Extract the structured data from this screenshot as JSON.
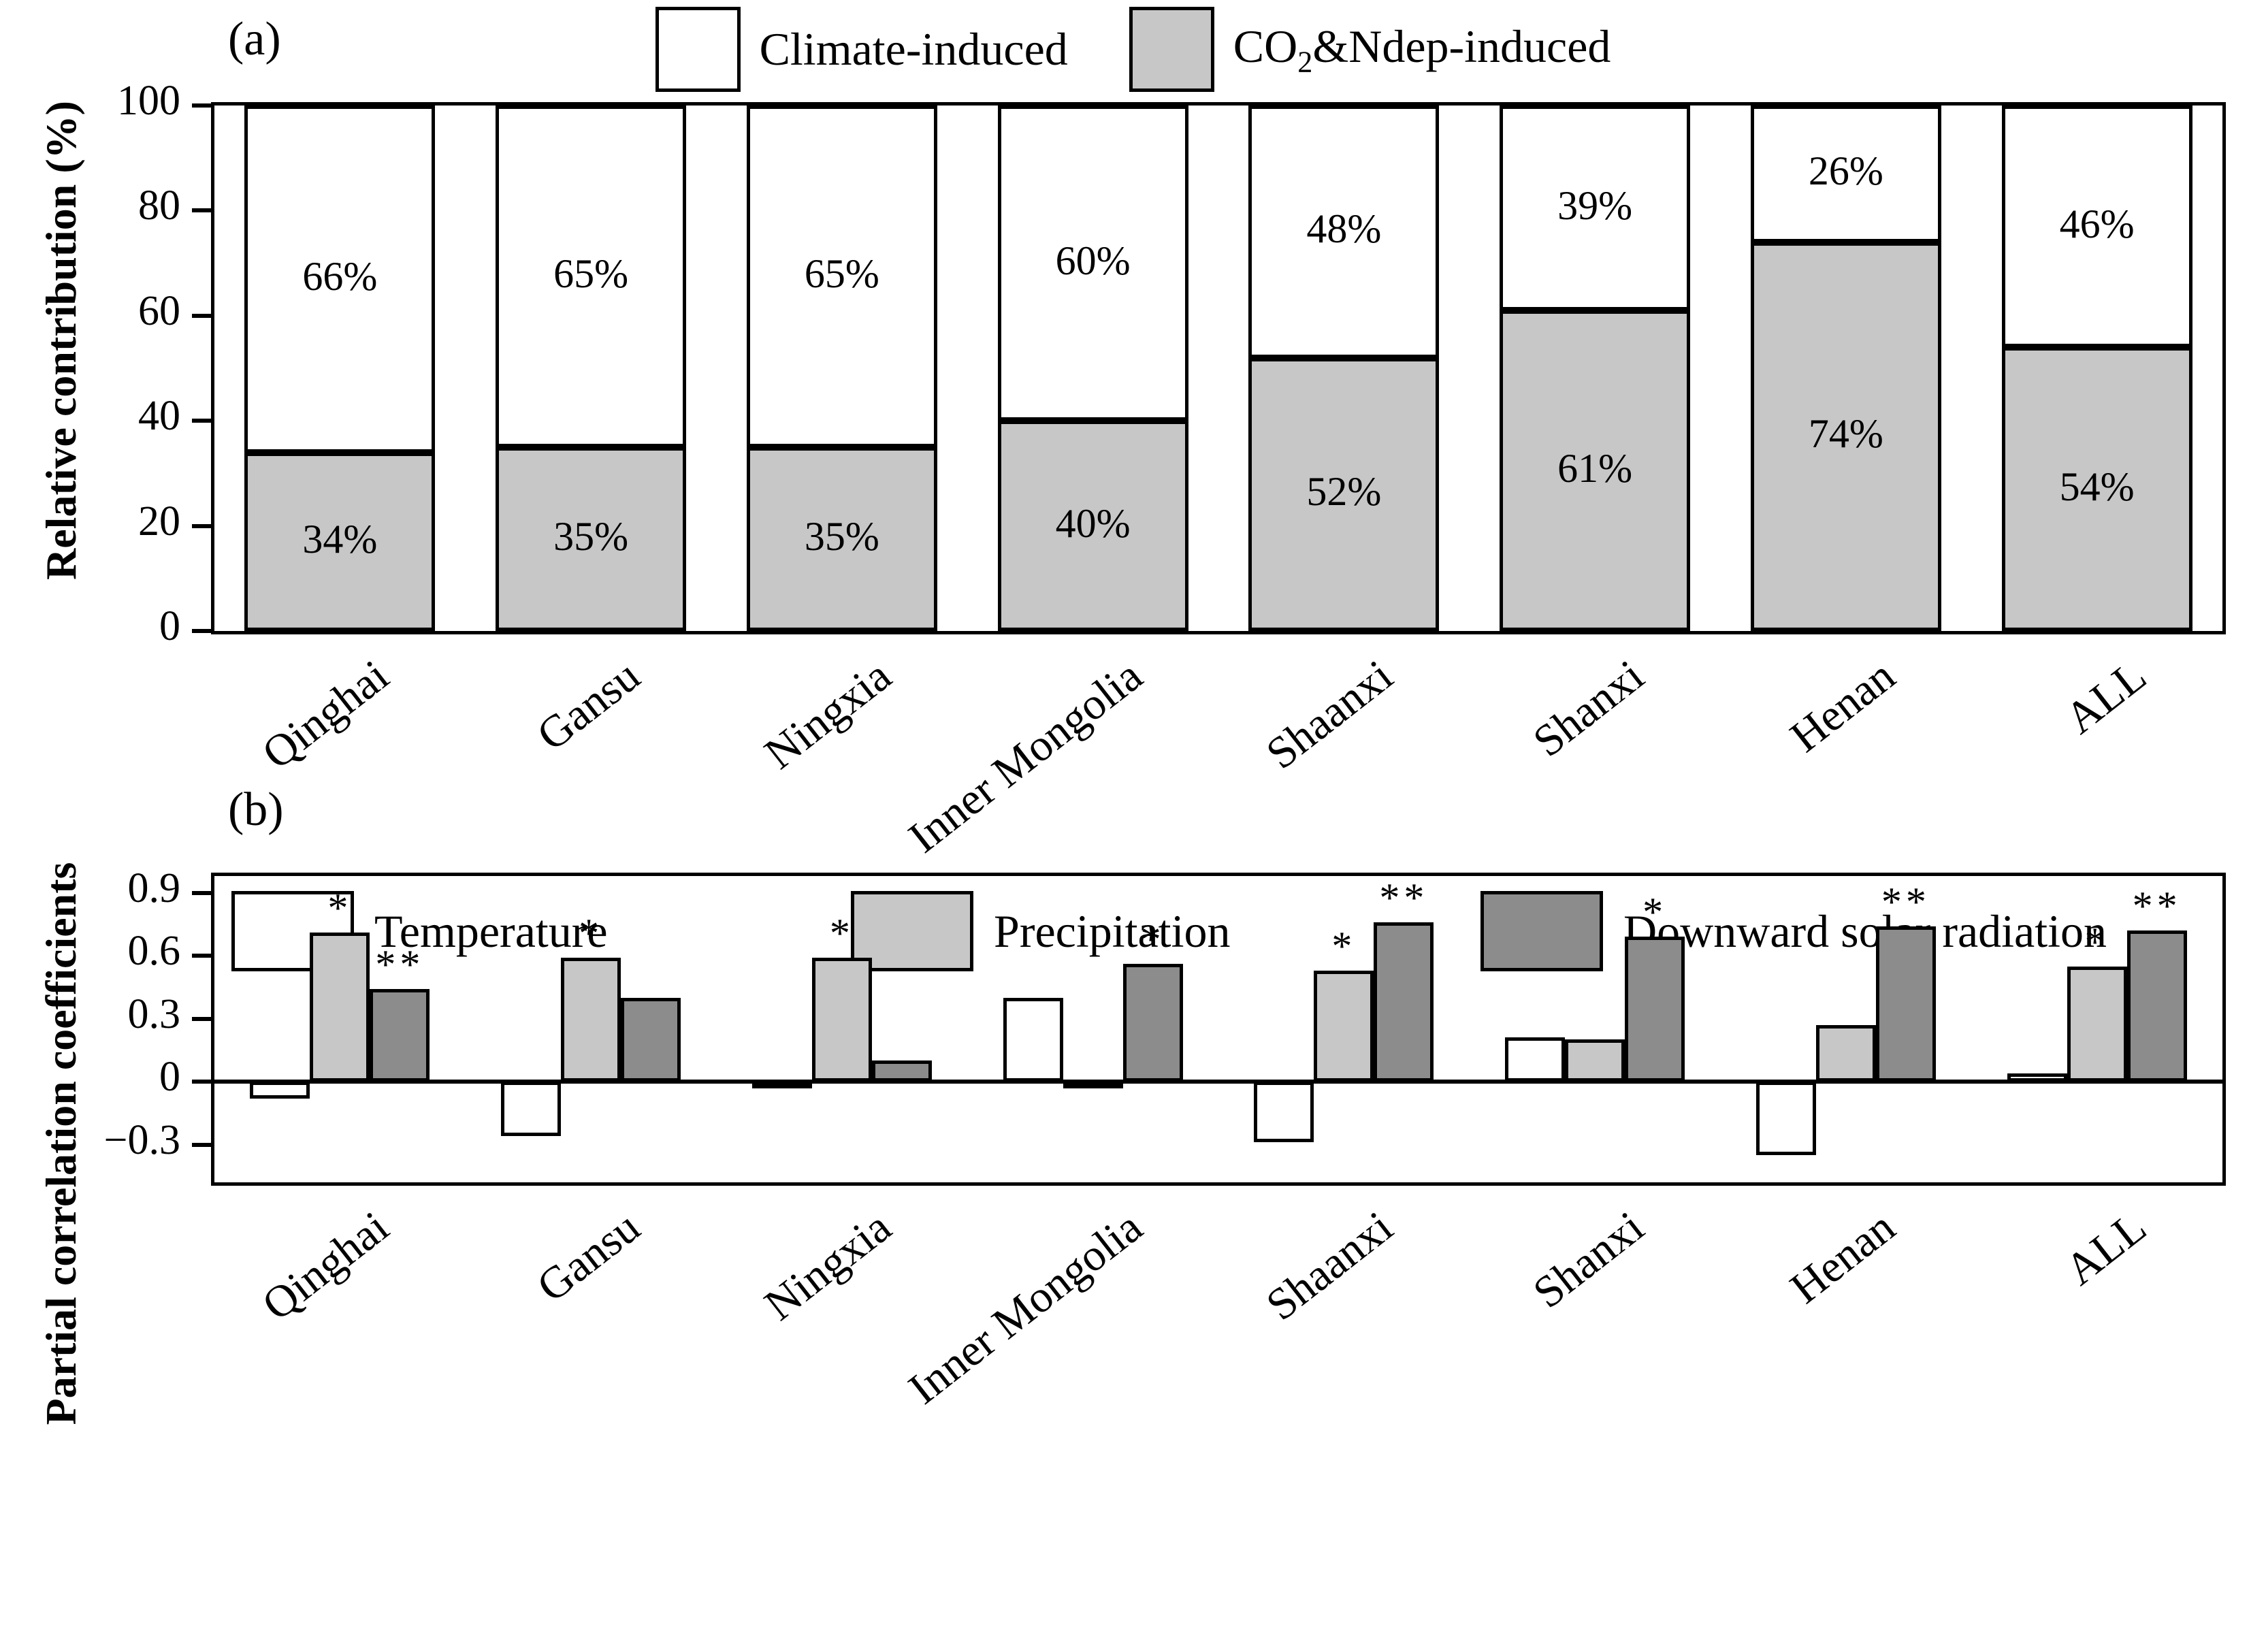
{
  "panel_a": {
    "label": "(a)",
    "legend": [
      {
        "pre": "Climate-induced",
        "sub": "",
        "post": ""
      },
      {
        "pre": "CO",
        "sub": "2",
        "post": "&Ndep-induced"
      }
    ]
  },
  "panel_b": {
    "label": "(b)"
  },
  "chart_data": [
    {
      "type": "bar",
      "variant": "stacked-percent",
      "title": "",
      "ylabel": "Relative contribution (%)",
      "ylim": [
        0,
        100
      ],
      "yticks": [
        0,
        20,
        40,
        60,
        80,
        100
      ],
      "grid": false,
      "legend_position": "top-center",
      "categories": [
        "Qinghai",
        "Gansu",
        "Ningxia",
        "Inner Mongolia",
        "Shaanxi",
        "Shanxi",
        "Henan",
        "ALL"
      ],
      "series": [
        {
          "name": "Climate-induced",
          "color": "#ffffff",
          "values": [
            66,
            65,
            65,
            60,
            48,
            39,
            26,
            46
          ],
          "labels": [
            "66%",
            "65%",
            "65%",
            "60%",
            "48%",
            "39%",
            "26%",
            "46%"
          ]
        },
        {
          "name": "CO2&Ndep-induced",
          "color": "#c7c7c7",
          "values": [
            34,
            35,
            35,
            40,
            52,
            61,
            74,
            54
          ],
          "labels": [
            "34%",
            "35%",
            "35%",
            "40%",
            "52%",
            "61%",
            "74%",
            "54%"
          ]
        }
      ]
    },
    {
      "type": "bar",
      "variant": "grouped",
      "title": "",
      "ylabel": "Partial correlation coefficients",
      "ylim": [
        -0.48,
        0.98
      ],
      "yticks": [
        0.9,
        0.6,
        0.3,
        0,
        -0.3
      ],
      "ytick_labels": [
        "0.9",
        "0.6",
        "0.3",
        "0",
        "−0.3"
      ],
      "grid": false,
      "legend_position": "top-inside",
      "categories": [
        "Qinghai",
        "Gansu",
        "Ningxia",
        "Inner Mongolia",
        "Shaanxi",
        "Shanxi",
        "Henan",
        "ALL"
      ],
      "series": [
        {
          "name": "Temperature",
          "color": "#ffffff",
          "values": [
            -0.08,
            -0.26,
            -0.02,
            0.4,
            -0.29,
            0.21,
            -0.35,
            0.04
          ],
          "sig": [
            "",
            "",
            "",
            "",
            "",
            "",
            "",
            ""
          ]
        },
        {
          "name": "Precipitation",
          "color": "#c7c7c7",
          "values": [
            0.71,
            0.59,
            0.59,
            -0.02,
            0.53,
            0.2,
            0.27,
            0.55
          ],
          "sig": [
            "*",
            "*",
            "*",
            "",
            "*",
            "",
            "",
            "*"
          ]
        },
        {
          "name": "Downward solar radiation",
          "color": "#8c8c8c",
          "values": [
            0.44,
            0.4,
            0.1,
            0.56,
            0.76,
            0.69,
            0.74,
            0.72
          ],
          "sig": [
            "**",
            "",
            "",
            "*",
            "**",
            "*",
            "**",
            "**"
          ]
        }
      ]
    }
  ]
}
